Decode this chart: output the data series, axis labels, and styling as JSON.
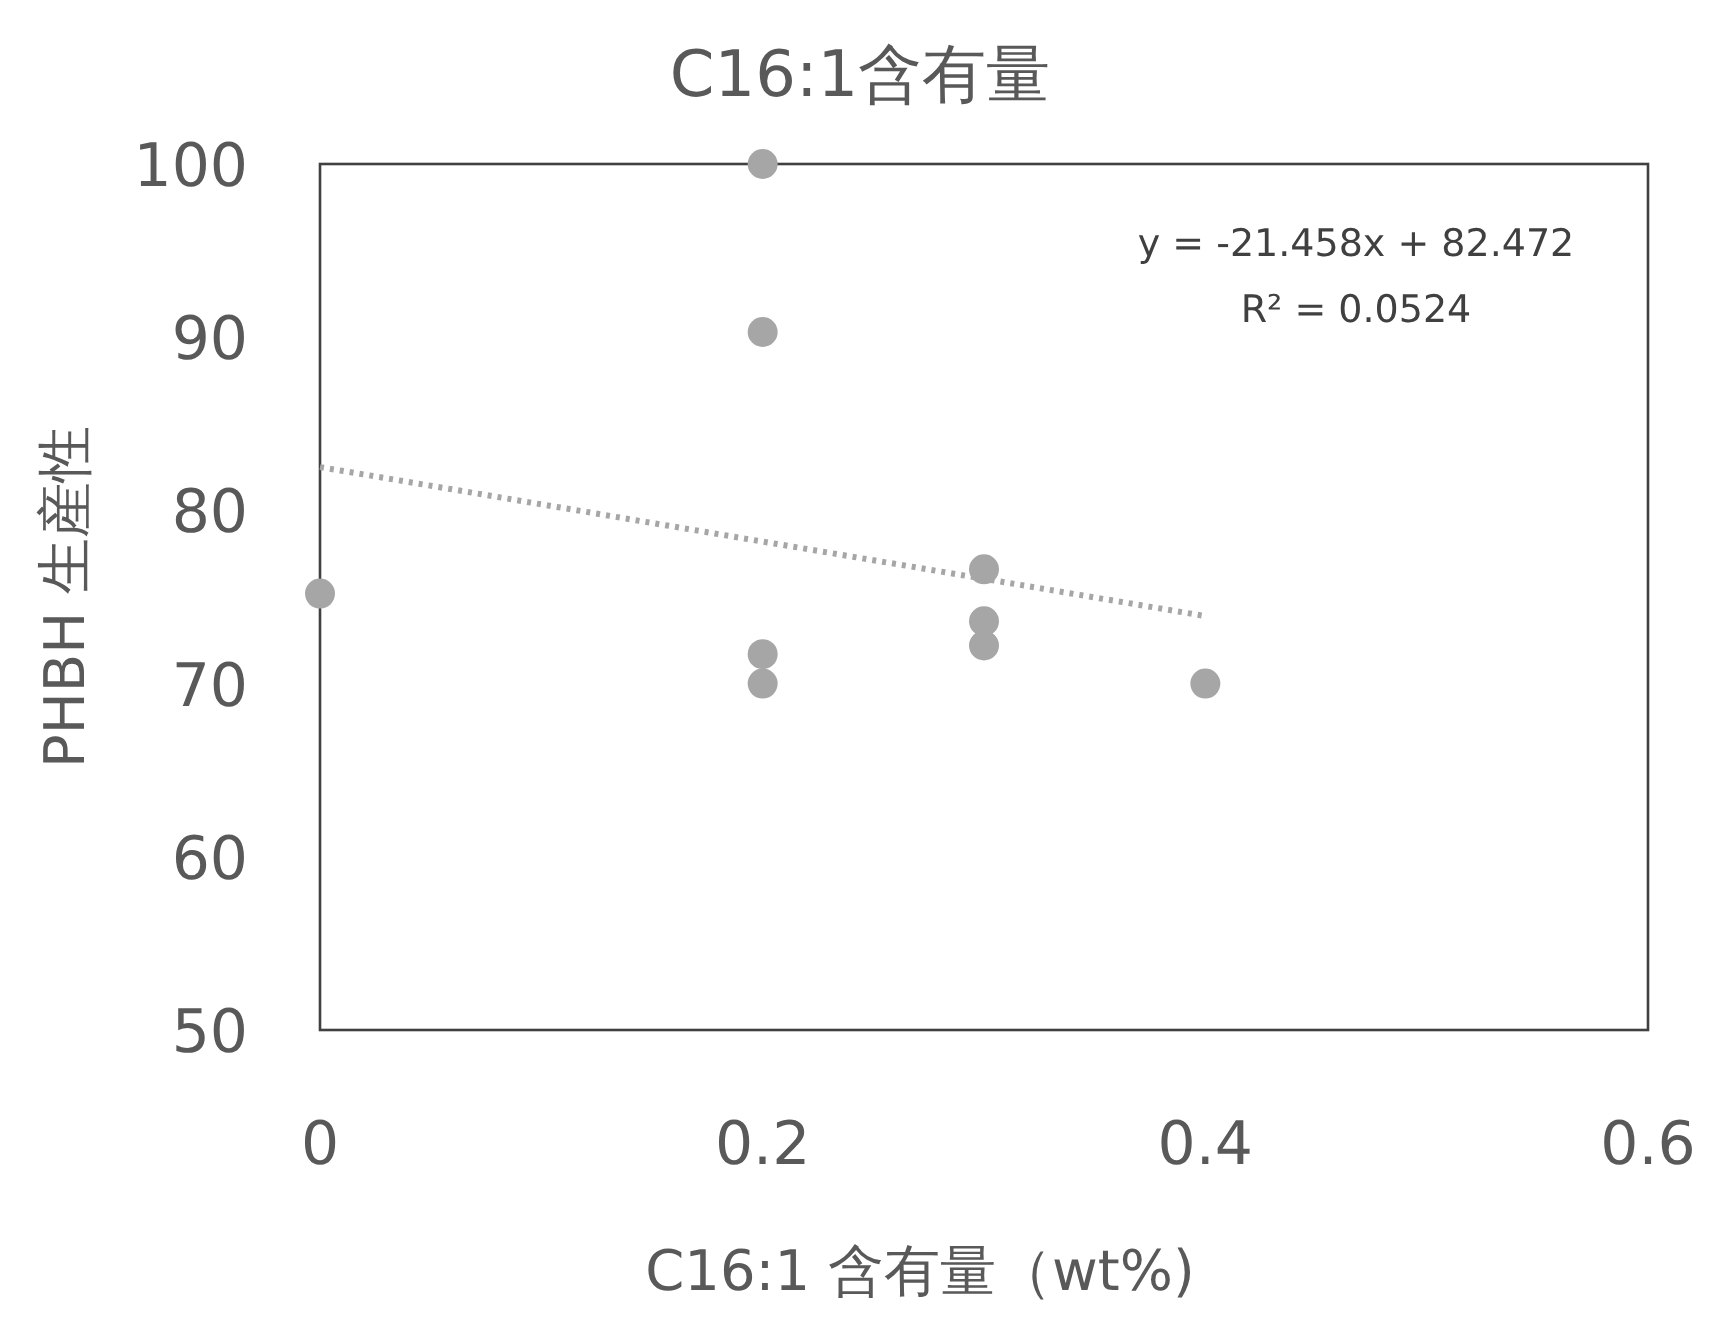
{
  "chart_data": {
    "type": "scatter",
    "title": "C16:1含有量",
    "xlabel": "C16:1 含有量（wt%)",
    "ylabel": "PHBH 生産性",
    "xlim": [
      0,
      0.6
    ],
    "xticks": [
      0,
      0.2,
      0.4,
      0.6
    ],
    "ylim": [
      50,
      100
    ],
    "yticks": [
      50,
      60,
      70,
      80,
      90,
      100
    ],
    "annotations": [
      "y = -21.458x + 82.472",
      "R² = 0.0524"
    ],
    "series": [
      {
        "color": "#a6a6a6",
        "marker": "circle",
        "x": [
          0,
          0.2,
          0.2,
          0.2,
          0.2,
          0.3,
          0.3,
          0.3,
          0.4
        ],
        "values": [
          75.2,
          100,
          90.3,
          71.7,
          70,
          76.6,
          73.6,
          72.2,
          70
        ]
      },
      {
        "type": "line",
        "color": "#a6a6a6",
        "marker": "none",
        "line_style": "dotted",
        "x": [
          0,
          0.4
        ],
        "values": [
          82.5,
          73.9
        ]
      }
    ]
  }
}
